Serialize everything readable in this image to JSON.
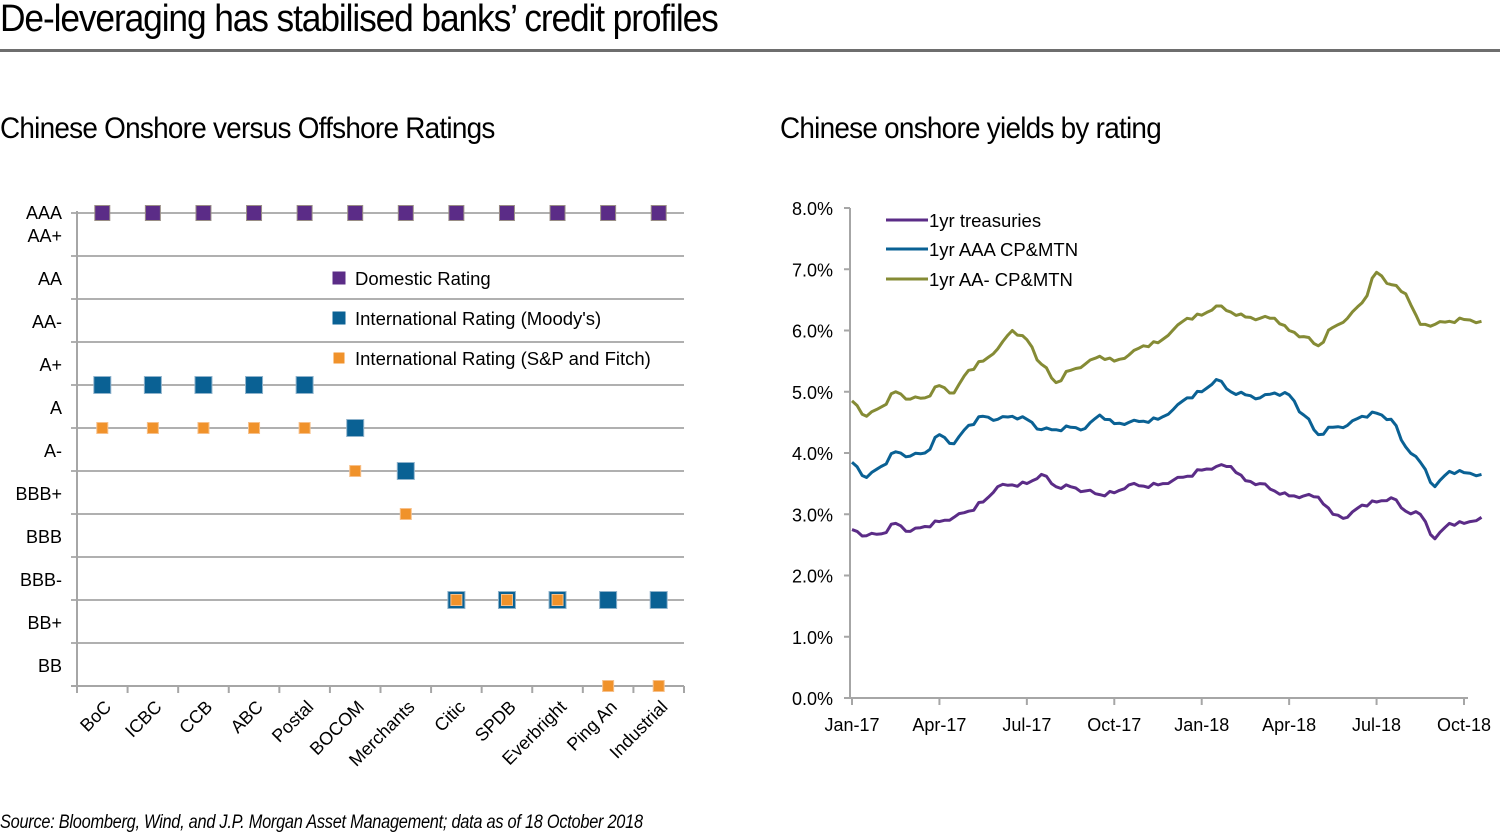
{
  "page": {
    "title": "De-leveraging has stabilised banks’ credit profiles",
    "source": "Source: Bloomberg, Wind, and J.P. Morgan Asset Management; data as of 18 October 2018"
  },
  "colors": {
    "domestic": "#5b2c87",
    "moodys": "#0a6194",
    "sp_fitch": "#f0922b",
    "treasuries": "#5b2c87",
    "aaa": "#0a6194",
    "aa_minus": "#858b35",
    "grid": "#b0b0b0",
    "axis": "#a6a6a6"
  },
  "chart_data": [
    {
      "type": "scatter",
      "title": "Chinese Onshore versus Offshore Ratings",
      "xlabel": "",
      "ylabel": "",
      "y_categories": [
        "AAA",
        "AA+",
        "AA",
        "AA-",
        "A+",
        "A",
        "A-",
        "BBB+",
        "BBB",
        "BBB-",
        "BB+",
        "BB"
      ],
      "categories": [
        "BoC",
        "ICBC",
        "CCB",
        "ABC",
        "Postal",
        "BOCOM",
        "Merchants",
        "Citic",
        "SPDB",
        "Everbright",
        "Ping An",
        "Industrial"
      ],
      "series": [
        {
          "name": "Domestic Rating",
          "values": [
            "AAA",
            "AAA",
            "AAA",
            "AAA",
            "AAA",
            "AAA",
            "AAA",
            "AAA",
            "AAA",
            "AAA",
            "AAA",
            "AAA"
          ]
        },
        {
          "name": "International Rating (Moody's)",
          "values": [
            "A+",
            "A+",
            "A+",
            "A+",
            "A+",
            "A",
            "A-",
            "BBB-",
            "BBB-",
            "BBB-",
            "BBB-",
            "BBB-"
          ]
        },
        {
          "name": "International Rating (S&P and Fitch)",
          "values": [
            "A",
            "A",
            "A",
            "A",
            "A",
            "A-",
            "BBB+",
            "BBB-",
            "BBB-",
            "BBB-",
            "BB",
            "BB"
          ]
        }
      ],
      "grid": true,
      "legend": "center-right"
    },
    {
      "type": "line",
      "title": "Chinese onshore yields by rating",
      "xlabel": "",
      "ylabel": "",
      "ylim": [
        0,
        8
      ],
      "yticks": [
        "0.0%",
        "1.0%",
        "2.0%",
        "3.0%",
        "4.0%",
        "5.0%",
        "6.0%",
        "7.0%",
        "8.0%"
      ],
      "xticks": [
        "Jan-17",
        "Apr-17",
        "Jul-17",
        "Oct-17",
        "Jan-18",
        "Apr-18",
        "Jul-18",
        "Oct-18"
      ],
      "x_unit": "months since Jan-17",
      "x": [
        0,
        0.5,
        1,
        1.5,
        2,
        2.5,
        3,
        3.5,
        4,
        4.5,
        5,
        5.5,
        6,
        6.5,
        7,
        7.5,
        8,
        8.5,
        9,
        9.5,
        10,
        10.5,
        11,
        11.5,
        12,
        12.5,
        13,
        13.5,
        14,
        14.5,
        15,
        15.5,
        16,
        16.5,
        17,
        17.5,
        18,
        18.5,
        19,
        19.5,
        20,
        20.5,
        21,
        21.6
      ],
      "series": [
        {
          "name": "1yr treasuries",
          "values": [
            2.75,
            2.65,
            2.68,
            2.85,
            2.72,
            2.8,
            2.88,
            2.95,
            3.05,
            3.2,
            3.45,
            3.48,
            3.5,
            3.65,
            3.45,
            3.45,
            3.38,
            3.32,
            3.35,
            3.48,
            3.46,
            3.48,
            3.55,
            3.62,
            3.72,
            3.78,
            3.78,
            3.55,
            3.5,
            3.38,
            3.3,
            3.3,
            3.28,
            3.0,
            2.95,
            3.15,
            3.2,
            3.27,
            3.05,
            3.0,
            2.6,
            2.85,
            2.85,
            2.95
          ]
        },
        {
          "name": "1yr AAA CP&MTN",
          "values": [
            3.85,
            3.6,
            3.78,
            4.02,
            3.95,
            4.0,
            4.3,
            4.15,
            4.45,
            4.6,
            4.55,
            4.6,
            4.55,
            4.38,
            4.38,
            4.42,
            4.4,
            4.62,
            4.48,
            4.5,
            4.52,
            4.55,
            4.7,
            4.9,
            5.0,
            5.2,
            5.0,
            4.95,
            4.9,
            4.98,
            4.95,
            4.62,
            4.3,
            4.42,
            4.45,
            4.6,
            4.65,
            4.55,
            4.1,
            3.85,
            3.45,
            3.7,
            3.68,
            3.65
          ]
        },
        {
          "name": "1yr AA- CP&MTN",
          "values": [
            4.85,
            4.6,
            4.75,
            5.0,
            4.88,
            4.9,
            5.1,
            4.98,
            5.35,
            5.5,
            5.7,
            6.0,
            5.85,
            5.45,
            5.15,
            5.35,
            5.45,
            5.58,
            5.5,
            5.6,
            5.75,
            5.8,
            6.0,
            6.2,
            6.25,
            6.4,
            6.3,
            6.22,
            6.2,
            6.2,
            6.0,
            5.9,
            5.75,
            6.05,
            6.2,
            6.45,
            6.95,
            6.75,
            6.6,
            6.1,
            6.1,
            6.15,
            6.18,
            6.15
          ]
        }
      ],
      "grid": false,
      "legend": "top-left"
    }
  ]
}
